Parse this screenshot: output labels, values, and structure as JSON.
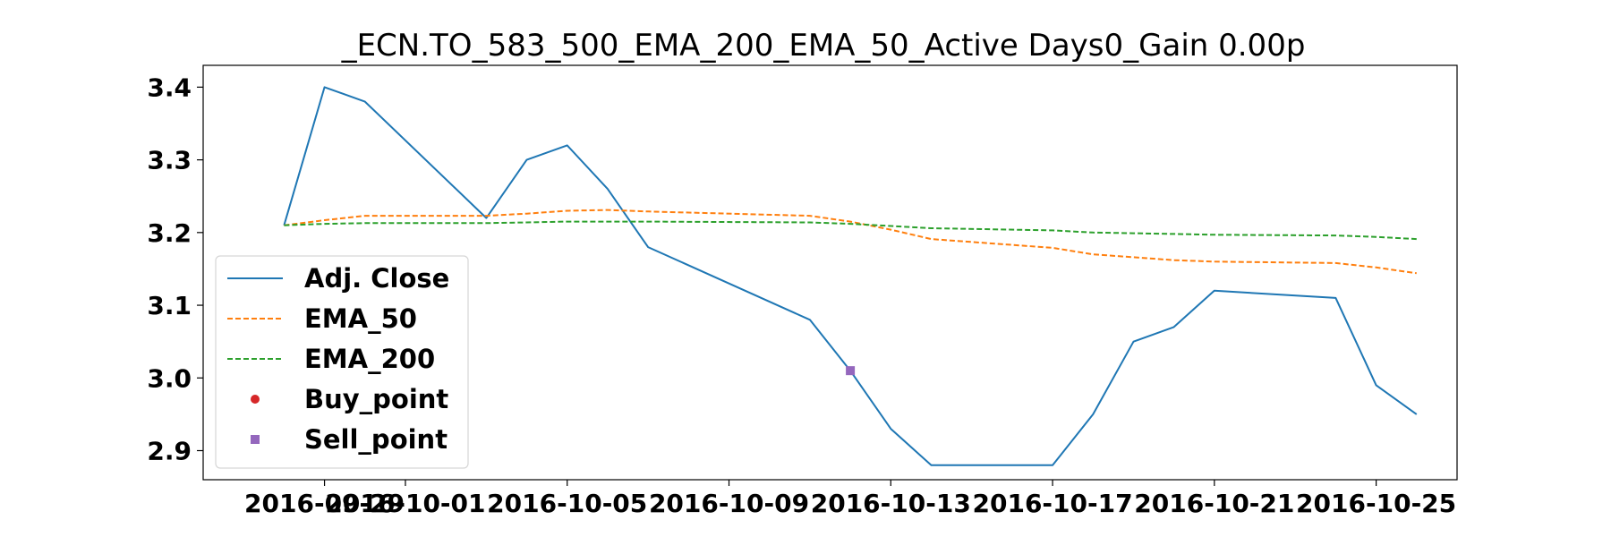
{
  "chart_data": {
    "type": "line",
    "title": "_ECN.TO_583_500_EMA_200_EMA_50_Active Days0_Gain   0.00p",
    "xlabel": "",
    "ylabel": "",
    "x_ticks": [
      "2016-09-29",
      "2016-10-01",
      "2016-10-05",
      "2016-10-09",
      "2016-10-13",
      "2016-10-17",
      "2016-10-21",
      "2016-10-25"
    ],
    "xlim": [
      "2016-09-26",
      "2016-10-27"
    ],
    "y_ticks": [
      2.9,
      3.0,
      3.1,
      3.2,
      3.3,
      3.4
    ],
    "ylim": [
      2.86,
      3.43
    ],
    "grid": false,
    "legend_position": "lower-left",
    "series": [
      {
        "name": "Adj. Close",
        "style": "solid",
        "color": "#1f77b4",
        "points": [
          [
            "2016-09-28",
            3.21
          ],
          [
            "2016-09-29",
            3.4
          ],
          [
            "2016-09-30",
            3.38
          ],
          [
            "2016-10-03",
            3.22
          ],
          [
            "2016-10-04",
            3.3
          ],
          [
            "2016-10-05",
            3.32
          ],
          [
            "2016-10-06",
            3.26
          ],
          [
            "2016-10-07",
            3.18
          ],
          [
            "2016-10-11",
            3.08
          ],
          [
            "2016-10-12",
            3.01
          ],
          [
            "2016-10-13",
            2.93
          ],
          [
            "2016-10-14",
            2.88
          ],
          [
            "2016-10-17",
            2.88
          ],
          [
            "2016-10-18",
            2.95
          ],
          [
            "2016-10-19",
            3.05
          ],
          [
            "2016-10-20",
            3.07
          ],
          [
            "2016-10-21",
            3.12
          ],
          [
            "2016-10-24",
            3.11
          ],
          [
            "2016-10-25",
            2.99
          ],
          [
            "2016-10-26",
            2.95
          ]
        ]
      },
      {
        "name": "EMA_50",
        "style": "dashed",
        "color": "#ff7f0e",
        "points": [
          [
            "2016-09-28",
            3.21
          ],
          [
            "2016-09-29",
            3.217
          ],
          [
            "2016-09-30",
            3.223
          ],
          [
            "2016-10-03",
            3.223
          ],
          [
            "2016-10-04",
            3.226
          ],
          [
            "2016-10-05",
            3.23
          ],
          [
            "2016-10-06",
            3.231
          ],
          [
            "2016-10-07",
            3.229
          ],
          [
            "2016-10-11",
            3.223
          ],
          [
            "2016-10-12",
            3.215
          ],
          [
            "2016-10-13",
            3.204
          ],
          [
            "2016-10-14",
            3.191
          ],
          [
            "2016-10-17",
            3.179
          ],
          [
            "2016-10-18",
            3.17
          ],
          [
            "2016-10-19",
            3.166
          ],
          [
            "2016-10-20",
            3.162
          ],
          [
            "2016-10-21",
            3.16
          ],
          [
            "2016-10-24",
            3.158
          ],
          [
            "2016-10-25",
            3.152
          ],
          [
            "2016-10-26",
            3.144
          ]
        ]
      },
      {
        "name": "EMA_200",
        "style": "dashed",
        "color": "#2ca02c",
        "points": [
          [
            "2016-09-28",
            3.21
          ],
          [
            "2016-09-29",
            3.212
          ],
          [
            "2016-09-30",
            3.213
          ],
          [
            "2016-10-03",
            3.213
          ],
          [
            "2016-10-04",
            3.214
          ],
          [
            "2016-10-05",
            3.215
          ],
          [
            "2016-10-06",
            3.215
          ],
          [
            "2016-10-07",
            3.215
          ],
          [
            "2016-10-11",
            3.214
          ],
          [
            "2016-10-12",
            3.212
          ],
          [
            "2016-10-13",
            3.209
          ],
          [
            "2016-10-14",
            3.206
          ],
          [
            "2016-10-17",
            3.203
          ],
          [
            "2016-10-18",
            3.2
          ],
          [
            "2016-10-19",
            3.199
          ],
          [
            "2016-10-20",
            3.198
          ],
          [
            "2016-10-21",
            3.197
          ],
          [
            "2016-10-24",
            3.196
          ],
          [
            "2016-10-25",
            3.194
          ],
          [
            "2016-10-26",
            3.191
          ]
        ]
      },
      {
        "name": "Buy_point",
        "style": "marker-circle",
        "color": "#d62728",
        "points": []
      },
      {
        "name": "Sell_point",
        "style": "marker-square",
        "color": "#9467bd",
        "points": [
          [
            "2016-10-12",
            3.01
          ]
        ]
      }
    ]
  }
}
